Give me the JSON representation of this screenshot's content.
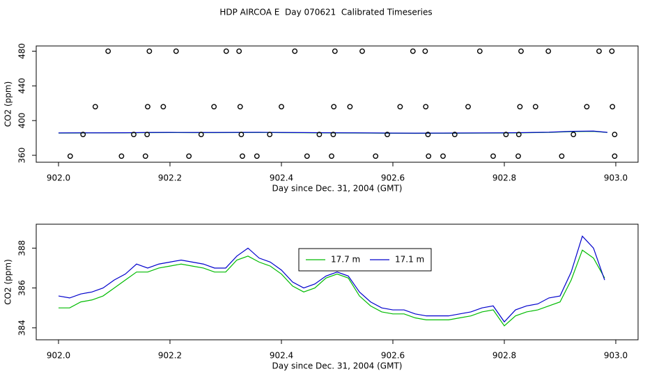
{
  "title": "HDP AIRCOA E  Day 070621  Calibrated Timeseries",
  "chart_data": [
    {
      "type": "line",
      "x_label": "Day since Dec. 31, 2004 (GMT)",
      "y_label": "CO2 (ppm)",
      "xlim": [
        901.96,
        903.04
      ],
      "ylim": [
        352,
        486
      ],
      "xticks": [
        {
          "value": 902.0,
          "label": "902.0"
        },
        {
          "value": 902.2,
          "label": "902.2"
        },
        902.4,
        902.6,
        902.8,
        {
          "value": 903.0,
          "label": "903.0"
        }
      ],
      "yticks": [
        360,
        400,
        440,
        480
      ],
      "x": [
        902.0,
        902.04,
        902.08,
        902.12,
        902.16,
        902.2,
        902.24,
        902.28,
        902.32,
        902.36,
        902.4,
        902.44,
        902.48,
        902.52,
        902.56,
        902.6,
        902.64,
        902.68,
        902.72,
        902.76,
        902.8,
        902.84,
        902.88,
        902.92,
        902.96,
        902.985
      ],
      "series": [
        {
          "color": "#00bb00",
          "values": [
            385.6,
            385.7,
            385.8,
            385.9,
            386.1,
            386.2,
            386.1,
            386.1,
            386.2,
            386.3,
            386.1,
            386.0,
            385.8,
            385.7,
            385.6,
            385.4,
            385.3,
            385.4,
            385.5,
            385.6,
            385.7,
            386.0,
            386.4,
            387.3,
            387.6,
            386.3
          ]
        },
        {
          "color": "#0000cc",
          "values": [
            385.8,
            385.9,
            385.9,
            386.0,
            386.3,
            386.4,
            386.3,
            386.3,
            386.4,
            386.5,
            386.3,
            386.2,
            386.0,
            385.9,
            385.8,
            385.6,
            385.5,
            385.6,
            385.7,
            385.8,
            385.9,
            386.2,
            386.6,
            387.6,
            387.9,
            386.4
          ]
        },
        {
          "type": "scatter",
          "color": "#000000",
          "x": [
            902.089,
            902.163,
            902.211,
            902.301,
            902.324,
            902.424,
            902.496,
            902.545,
            902.636,
            902.658,
            902.756,
            902.83,
            902.879,
            902.97,
            902.993,
            902.066,
            902.16,
            902.188,
            902.279,
            902.326,
            902.4,
            902.494,
            902.523,
            902.613,
            902.659,
            902.735,
            902.828,
            902.856,
            902.948,
            902.994,
            902.044,
            902.135,
            902.159,
            902.256,
            902.328,
            902.379,
            902.468,
            902.493,
            902.59,
            902.663,
            902.711,
            902.803,
            902.826,
            902.924,
            902.998,
            902.021,
            902.113,
            902.156,
            902.234,
            902.33,
            902.356,
            902.446,
            902.49,
            902.569,
            902.664,
            902.69,
            902.78,
            902.825,
            902.903,
            902.998
          ],
          "values": [
            480,
            480,
            480,
            480,
            480,
            480,
            480,
            480,
            480,
            480,
            480,
            480,
            480,
            480,
            480,
            416,
            416,
            416,
            416,
            416,
            416,
            416,
            416,
            416,
            416,
            416,
            416,
            416,
            416,
            416,
            384,
            384,
            384,
            384,
            384,
            384,
            384,
            384,
            384,
            384,
            384,
            384,
            384,
            384,
            384,
            359,
            359,
            359,
            359,
            359,
            359,
            359,
            359,
            359,
            359,
            359,
            359,
            359,
            359,
            359
          ]
        }
      ]
    },
    {
      "type": "line",
      "x_label": "Day since Dec. 31, 2004 (GMT)",
      "y_label": "CO2 (ppm)",
      "xlim": [
        901.96,
        903.04
      ],
      "ylim": [
        383.4,
        389.2
      ],
      "xticks": [
        {
          "value": 902.0,
          "label": "902.0"
        },
        {
          "value": 902.2,
          "label": "902.2"
        },
        902.4,
        902.6,
        902.8,
        {
          "value": 903.0,
          "label": "903.0"
        }
      ],
      "yticks": [
        384,
        386,
        388
      ],
      "legend": "top-center",
      "x": [
        902.0,
        902.02,
        902.04,
        902.06,
        902.08,
        902.1,
        902.12,
        902.14,
        902.16,
        902.18,
        902.2,
        902.22,
        902.24,
        902.26,
        902.28,
        902.3,
        902.32,
        902.34,
        902.36,
        902.38,
        902.4,
        902.42,
        902.44,
        902.46,
        902.48,
        902.5,
        902.52,
        902.54,
        902.56,
        902.58,
        902.6,
        902.62,
        902.64,
        902.66,
        902.68,
        902.7,
        902.72,
        902.74,
        902.76,
        902.78,
        902.8,
        902.82,
        902.84,
        902.86,
        902.88,
        902.9,
        902.92,
        902.94,
        902.96,
        902.98
      ],
      "series": [
        {
          "name": "17.7 m",
          "color": "#00bb00",
          "values": [
            385.0,
            385.0,
            385.3,
            385.4,
            385.6,
            386.0,
            386.4,
            386.8,
            386.8,
            387.0,
            387.1,
            387.2,
            387.1,
            387.0,
            386.8,
            386.8,
            387.4,
            387.6,
            387.3,
            387.1,
            386.7,
            386.1,
            385.8,
            386.0,
            386.5,
            386.7,
            386.5,
            385.6,
            385.1,
            384.8,
            384.7,
            384.7,
            384.5,
            384.4,
            384.4,
            384.4,
            384.5,
            384.6,
            384.8,
            384.9,
            384.1,
            384.6,
            384.8,
            384.9,
            385.1,
            385.3,
            386.4,
            387.9,
            387.5,
            386.5
          ]
        },
        {
          "name": "17.1 m",
          "color": "#0000cc",
          "values": [
            385.6,
            385.5,
            385.7,
            385.8,
            386.0,
            386.4,
            386.7,
            387.2,
            387.0,
            387.2,
            387.3,
            387.4,
            387.3,
            387.2,
            387.0,
            387.0,
            387.6,
            388.0,
            387.5,
            387.3,
            386.9,
            386.3,
            386.0,
            386.2,
            386.6,
            386.8,
            386.6,
            385.8,
            385.3,
            385.0,
            384.9,
            384.9,
            384.7,
            384.6,
            384.6,
            384.6,
            384.7,
            384.8,
            385.0,
            385.1,
            384.3,
            384.9,
            385.1,
            385.2,
            385.5,
            385.6,
            386.8,
            388.6,
            388.0,
            386.4
          ]
        }
      ]
    }
  ]
}
